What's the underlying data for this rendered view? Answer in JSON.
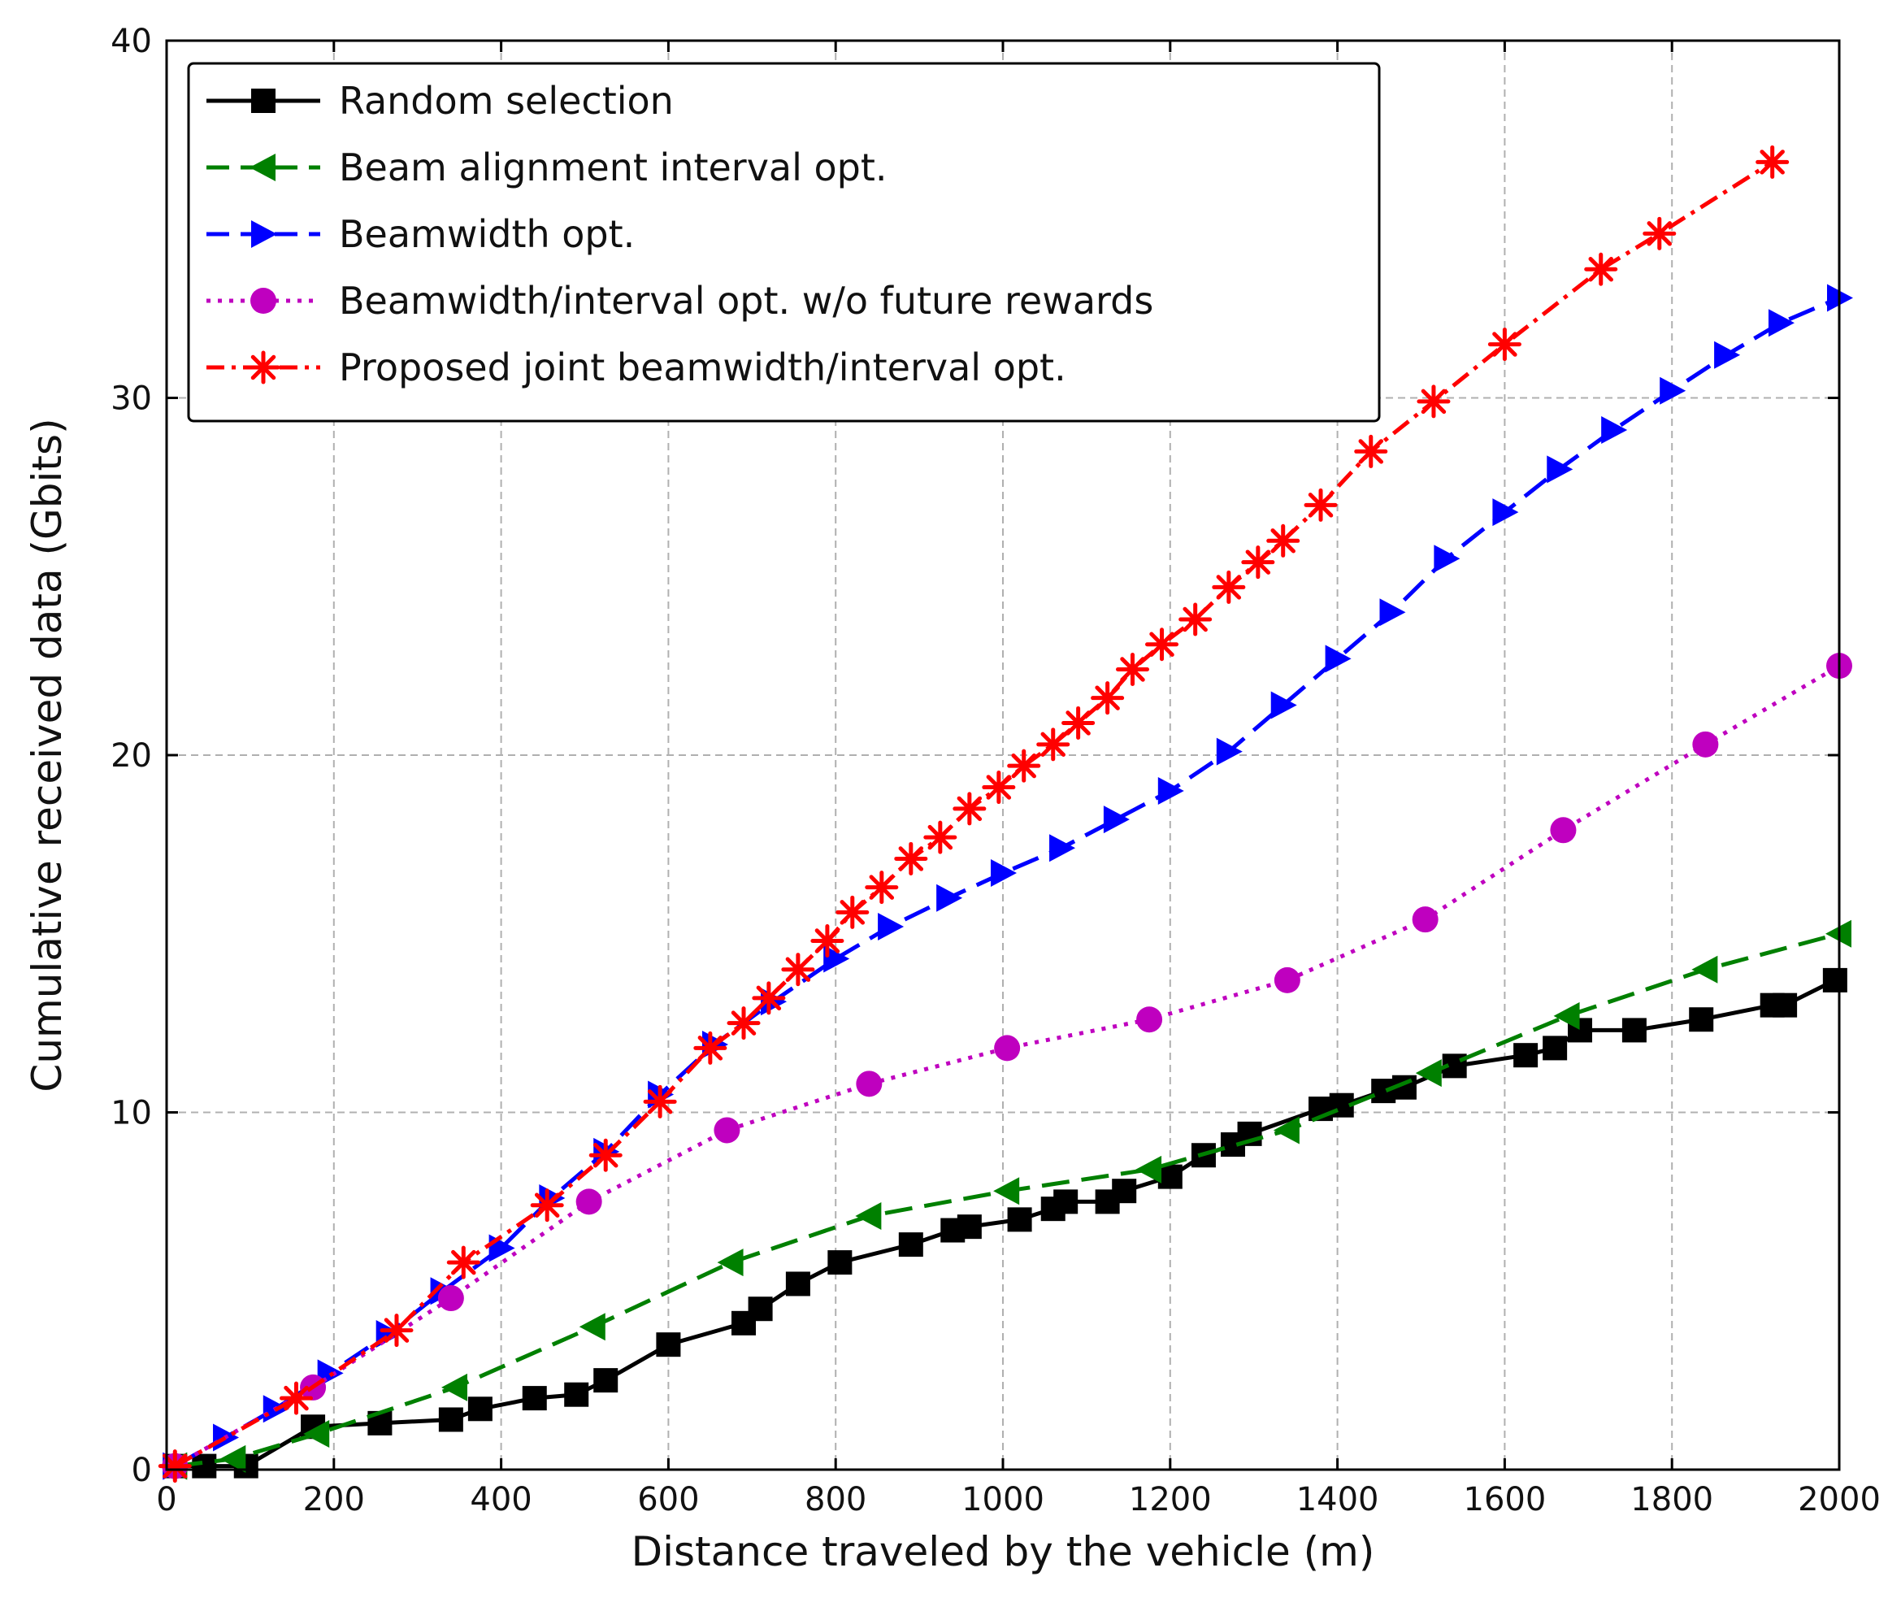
{
  "chart_data": {
    "type": "line",
    "title": "",
    "xlabel": "Distance traveled by the vehicle (m)",
    "ylabel": "Cumulative received data (Gbits)",
    "xlim": [
      0,
      2000
    ],
    "ylim": [
      0,
      40
    ],
    "xticks": [
      0,
      200,
      400,
      600,
      800,
      1000,
      1200,
      1400,
      1600,
      1800,
      2000
    ],
    "yticks": [
      0,
      10,
      20,
      30,
      40
    ],
    "grid": true,
    "legend_position": "top-left",
    "series": [
      {
        "name": "Random selection",
        "color": "#000000",
        "line_style": "solid",
        "marker": "square",
        "x": [
          10,
          45,
          95,
          175,
          255,
          340,
          375,
          440,
          490,
          525,
          600,
          690,
          710,
          755,
          805,
          890,
          940,
          960,
          1020,
          1060,
          1075,
          1125,
          1145,
          1200,
          1240,
          1275,
          1295,
          1380,
          1405,
          1455,
          1480,
          1540,
          1625,
          1660,
          1690,
          1755,
          1835,
          1920,
          1935,
          1995
        ],
        "y": [
          0.1,
          0.1,
          0.1,
          1.2,
          1.3,
          1.4,
          1.7,
          2.0,
          2.1,
          2.5,
          3.5,
          4.1,
          4.5,
          5.2,
          5.8,
          6.3,
          6.7,
          6.8,
          7.0,
          7.3,
          7.5,
          7.5,
          7.8,
          8.2,
          8.8,
          9.1,
          9.4,
          10.1,
          10.2,
          10.6,
          10.7,
          11.3,
          11.6,
          11.8,
          12.3,
          12.3,
          12.6,
          13.0,
          13.0,
          13.7
        ]
      },
      {
        "name": "Beam alignment interval opt.",
        "color": "#008000",
        "line_style": "dashed",
        "marker": "triangle-left",
        "x": [
          10,
          80,
          180,
          345,
          510,
          675,
          840,
          1005,
          1175,
          1340,
          1510,
          1675,
          1840,
          2000
        ],
        "y": [
          0.1,
          0.3,
          1.0,
          2.3,
          4.0,
          5.8,
          7.1,
          7.8,
          8.4,
          9.5,
          11.1,
          12.7,
          14.0,
          15.0
        ]
      },
      {
        "name": "Beamwidth opt.",
        "color": "#0000ff",
        "line_style": "dashed",
        "marker": "triangle-right",
        "x": [
          10,
          70,
          130,
          195,
          265,
          330,
          400,
          460,
          525,
          590,
          655,
          725,
          800,
          865,
          935,
          1000,
          1070,
          1135,
          1200,
          1270,
          1335,
          1400,
          1465,
          1530,
          1600,
          1665,
          1730,
          1800,
          1865,
          1930,
          2000
        ],
        "y": [
          0.1,
          0.9,
          1.7,
          2.7,
          3.8,
          5.0,
          6.2,
          7.6,
          8.9,
          10.5,
          11.9,
          13.1,
          14.3,
          15.2,
          16.0,
          16.7,
          17.4,
          18.2,
          19.0,
          20.1,
          21.4,
          22.7,
          24.0,
          25.5,
          26.8,
          28.0,
          29.1,
          30.2,
          31.2,
          32.1,
          32.8
        ]
      },
      {
        "name": "Beamwidth/interval opt. w/o future rewards",
        "color": "#bf00bf",
        "line_style": "dotted",
        "marker": "circle",
        "x": [
          10,
          175,
          340,
          505,
          670,
          840,
          1005,
          1175,
          1340,
          1505,
          1670,
          1840,
          2000
        ],
        "y": [
          0.1,
          2.3,
          4.8,
          7.5,
          9.5,
          10.8,
          11.8,
          12.6,
          13.7,
          15.4,
          17.9,
          20.3,
          22.5
        ]
      },
      {
        "name": "Proposed joint beamwidth/interval opt.",
        "color": "#ff0000",
        "line_style": "dashdot",
        "marker": "asterisk",
        "x": [
          10,
          155,
          275,
          355,
          455,
          525,
          590,
          650,
          690,
          720,
          755,
          790,
          820,
          855,
          890,
          925,
          960,
          995,
          1025,
          1060,
          1090,
          1125,
          1155,
          1190,
          1230,
          1270,
          1305,
          1335,
          1380,
          1440,
          1515,
          1600,
          1715,
          1785,
          1920
        ],
        "y": [
          0.1,
          2.0,
          3.9,
          5.8,
          7.4,
          8.8,
          10.3,
          11.8,
          12.5,
          13.2,
          14.0,
          14.8,
          15.6,
          16.3,
          17.1,
          17.7,
          18.5,
          19.1,
          19.7,
          20.3,
          20.9,
          21.6,
          22.4,
          23.1,
          23.8,
          24.7,
          25.4,
          26.0,
          27.0,
          28.5,
          29.9,
          31.5,
          33.6,
          34.6,
          36.6
        ]
      }
    ]
  }
}
